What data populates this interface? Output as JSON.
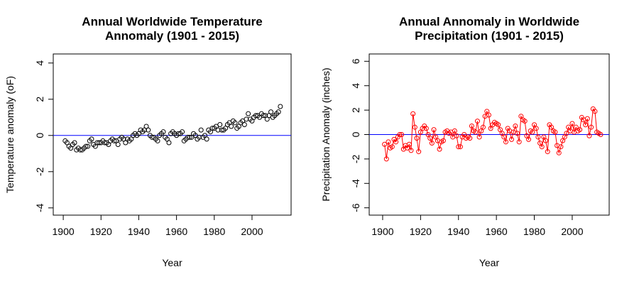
{
  "chart_data": [
    {
      "type": "scatter",
      "title": [
        "Annual Worldwide Temperature",
        "Annomaly (1901 - 2015)"
      ],
      "xlabel": "Year",
      "ylabel": "Temperature anomaly (oF)",
      "xlim": [
        1894.7,
        2020.7
      ],
      "ylim": [
        -4.4,
        4.5
      ],
      "xticks": [
        1900,
        1920,
        1940,
        1960,
        1980,
        2000
      ],
      "yticks": [
        -4,
        -2,
        0,
        2,
        4
      ],
      "hline": {
        "value": 0,
        "color": "#0000ff"
      },
      "color": "#000000",
      "x": [
        1901,
        1902,
        1903,
        1904,
        1905,
        1906,
        1907,
        1908,
        1909,
        1910,
        1911,
        1912,
        1913,
        1914,
        1915,
        1916,
        1917,
        1918,
        1919,
        1920,
        1921,
        1922,
        1923,
        1924,
        1925,
        1926,
        1927,
        1928,
        1929,
        1930,
        1931,
        1932,
        1933,
        1934,
        1935,
        1936,
        1937,
        1938,
        1939,
        1940,
        1941,
        1942,
        1943,
        1944,
        1945,
        1946,
        1947,
        1948,
        1949,
        1950,
        1951,
        1952,
        1953,
        1954,
        1955,
        1956,
        1957,
        1958,
        1959,
        1960,
        1961,
        1962,
        1963,
        1964,
        1965,
        1966,
        1967,
        1968,
        1969,
        1970,
        1971,
        1972,
        1973,
        1974,
        1975,
        1976,
        1977,
        1978,
        1979,
        1980,
        1981,
        1982,
        1983,
        1984,
        1985,
        1986,
        1987,
        1988,
        1989,
        1990,
        1991,
        1992,
        1993,
        1994,
        1995,
        1996,
        1997,
        1998,
        1999,
        2000,
        2001,
        2002,
        2003,
        2004,
        2005,
        2006,
        2007,
        2008,
        2009,
        2010,
        2011,
        2012,
        2013,
        2014,
        2015
      ],
      "values": [
        -0.3,
        -0.4,
        -0.6,
        -0.7,
        -0.5,
        -0.4,
        -0.8,
        -0.7,
        -0.8,
        -0.8,
        -0.7,
        -0.6,
        -0.6,
        -0.3,
        -0.2,
        -0.5,
        -0.6,
        -0.4,
        -0.4,
        -0.4,
        -0.3,
        -0.4,
        -0.4,
        -0.5,
        -0.3,
        -0.2,
        -0.3,
        -0.3,
        -0.5,
        -0.2,
        -0.1,
        -0.2,
        -0.4,
        -0.2,
        -0.3,
        -0.2,
        0.0,
        0.1,
        0.0,
        0.1,
        0.3,
        0.2,
        0.3,
        0.5,
        0.3,
        0.0,
        -0.1,
        -0.1,
        -0.2,
        -0.3,
        0.0,
        0.1,
        0.2,
        -0.1,
        -0.2,
        -0.4,
        0.1,
        0.2,
        0.1,
        0.0,
        0.1,
        0.1,
        0.2,
        -0.3,
        -0.2,
        -0.1,
        -0.1,
        -0.1,
        0.1,
        0.0,
        -0.2,
        -0.1,
        0.3,
        -0.1,
        0.0,
        -0.2,
        0.3,
        0.2,
        0.4,
        0.4,
        0.5,
        0.3,
        0.6,
        0.3,
        0.3,
        0.4,
        0.6,
        0.7,
        0.5,
        0.8,
        0.7,
        0.4,
        0.5,
        0.7,
        0.8,
        0.6,
        0.9,
        1.2,
        0.9,
        0.8,
        1.0,
        1.1,
        1.1,
        1.0,
        1.2,
        1.1,
        1.1,
        0.9,
        1.1,
        1.3,
        1.0,
        1.1,
        1.2,
        1.3,
        1.6
      ]
    },
    {
      "type": "line",
      "title": [
        "Annual Annomaly in Worldwide",
        "Precipitation (1901 - 2015)"
      ],
      "xlabel": "Year",
      "ylabel": "Precipitation Anomaly (inches)",
      "xlim": [
        1892.9,
        2019.5
      ],
      "ylim": [
        -6.6,
        6.6
      ],
      "xticks": [
        1900,
        1920,
        1940,
        1960,
        1980,
        2000
      ],
      "yticks": [
        -6,
        -4,
        -2,
        0,
        2,
        4,
        6
      ],
      "hline": {
        "value": 0,
        "color": "#0000ff"
      },
      "color": "#ff0000",
      "x": [
        1901,
        1902,
        1903,
        1904,
        1905,
        1906,
        1907,
        1908,
        1909,
        1910,
        1911,
        1912,
        1913,
        1914,
        1915,
        1916,
        1917,
        1918,
        1919,
        1920,
        1921,
        1922,
        1923,
        1924,
        1925,
        1926,
        1927,
        1928,
        1929,
        1930,
        1931,
        1932,
        1933,
        1934,
        1935,
        1936,
        1937,
        1938,
        1939,
        1940,
        1941,
        1942,
        1943,
        1944,
        1945,
        1946,
        1947,
        1948,
        1949,
        1950,
        1951,
        1952,
        1953,
        1954,
        1955,
        1956,
        1957,
        1958,
        1959,
        1960,
        1961,
        1962,
        1963,
        1964,
        1965,
        1966,
        1967,
        1968,
        1969,
        1970,
        1971,
        1972,
        1973,
        1974,
        1975,
        1976,
        1977,
        1978,
        1979,
        1980,
        1981,
        1982,
        1983,
        1984,
        1985,
        1986,
        1987,
        1988,
        1989,
        1990,
        1991,
        1992,
        1993,
        1994,
        1995,
        1996,
        1997,
        1998,
        1999,
        2000,
        2001,
        2002,
        2003,
        2004,
        2005,
        2006,
        2007,
        2008,
        2009,
        2010,
        2011,
        2012,
        2013,
        2014,
        2015
      ],
      "values": [
        -0.8,
        -2.0,
        -0.6,
        -1.1,
        -1.0,
        -0.4,
        -0.6,
        -0.2,
        0.0,
        0.0,
        -1.2,
        -0.9,
        -1.1,
        -0.8,
        -1.3,
        1.7,
        0.6,
        -0.3,
        -1.4,
        0.2,
        0.5,
        0.7,
        0.5,
        0.0,
        -0.3,
        -0.7,
        0.4,
        -0.2,
        -0.5,
        -1.2,
        -0.6,
        -0.5,
        0.2,
        0.3,
        0.1,
        0.2,
        -0.2,
        0.3,
        -0.1,
        -1.0,
        -1.0,
        -0.2,
        0.0,
        -0.3,
        -0.2,
        -0.3,
        0.7,
        0.3,
        0.2,
        1.1,
        -0.2,
        0.3,
        0.6,
        1.5,
        1.9,
        1.6,
        0.5,
        0.8,
        1.0,
        0.9,
        0.8,
        0.4,
        0.1,
        -0.2,
        -0.6,
        0.5,
        0.3,
        -0.4,
        0.2,
        0.7,
        0.1,
        -0.6,
        1.5,
        1.2,
        1.1,
        -0.1,
        -0.4,
        0.3,
        0.2,
        0.8,
        0.5,
        -0.2,
        -0.7,
        -1.0,
        -0.2,
        -0.5,
        -1.4,
        0.8,
        0.6,
        0.3,
        0.2,
        -0.9,
        -1.5,
        -1.0,
        -0.5,
        -0.2,
        0.1,
        0.6,
        0.3,
        0.9,
        0.2,
        0.6,
        0.3,
        0.4,
        1.4,
        1.2,
        0.8,
        1.3,
        -0.1,
        0.6,
        2.1,
        1.9,
        0.2,
        0.1,
        0.0
      ]
    }
  ]
}
